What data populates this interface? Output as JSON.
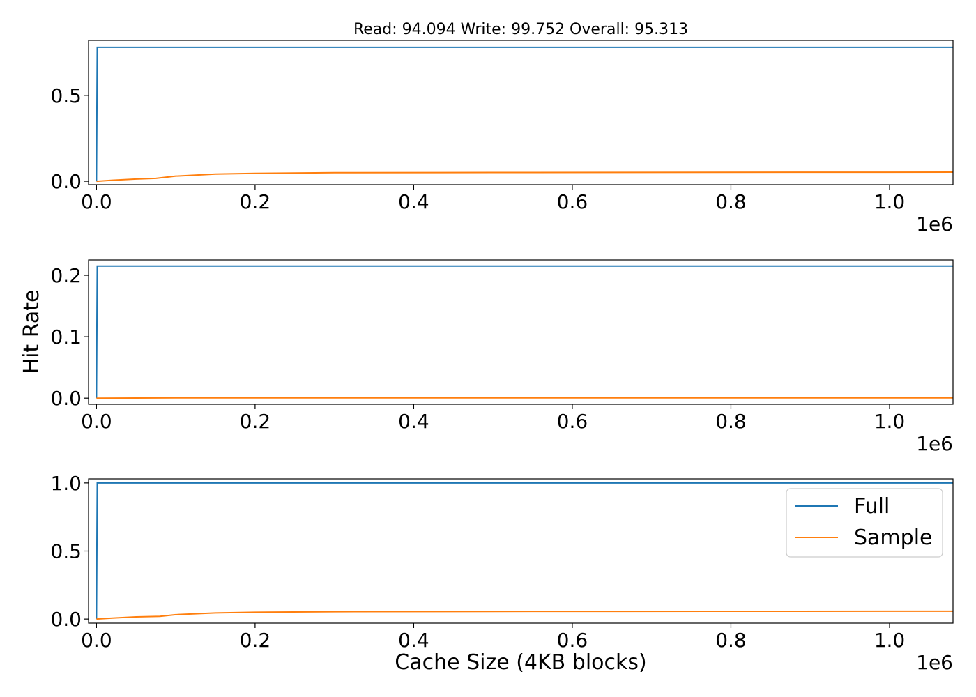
{
  "figure": {
    "title": "Read: 94.094 Write: 99.752 Overall: 95.313",
    "ylabel": "Hit Rate",
    "xlabel": "Cache Size (4KB blocks)",
    "x_offset_text": "1e6"
  },
  "colors": {
    "full": "#1f77b4",
    "sample": "#ff7f0e"
  },
  "legend": {
    "entries": [
      "Full",
      "Sample"
    ],
    "placement": "upper-right-of-bottom-panel"
  },
  "chart_data": [
    {
      "type": "line",
      "title": "Read: 94.094 Write: 99.752 Overall: 95.313",
      "xlim": [
        -10000,
        1080000
      ],
      "ylim": [
        -0.02,
        0.82
      ],
      "x_ticks": [
        0,
        200000,
        400000,
        600000,
        800000,
        1000000
      ],
      "x_tick_labels": [
        "0.0",
        "0.2",
        "0.4",
        "0.6",
        "0.8",
        "1.0"
      ],
      "y_ticks": [
        0,
        0.5
      ],
      "y_tick_labels": [
        "0.0",
        "0.5"
      ],
      "x_offset_text": "1e6",
      "grid": false,
      "series": [
        {
          "name": "Full",
          "x": [
            0,
            1000,
            1080000
          ],
          "y": [
            0,
            0.78,
            0.78
          ]
        },
        {
          "name": "Sample",
          "x": [
            0,
            20000,
            50000,
            75000,
            100000,
            150000,
            200000,
            300000,
            500000,
            1080000
          ],
          "y": [
            0,
            0.006,
            0.013,
            0.017,
            0.03,
            0.042,
            0.046,
            0.05,
            0.051,
            0.053
          ]
        }
      ]
    },
    {
      "type": "line",
      "xlim": [
        -10000,
        1080000
      ],
      "ylim": [
        -0.01,
        0.225
      ],
      "x_ticks": [
        0,
        200000,
        400000,
        600000,
        800000,
        1000000
      ],
      "x_tick_labels": [
        "0.0",
        "0.2",
        "0.4",
        "0.6",
        "0.8",
        "1.0"
      ],
      "y_ticks": [
        0,
        0.1,
        0.2
      ],
      "y_tick_labels": [
        "0.0",
        "0.1",
        "0.2"
      ],
      "x_offset_text": "1e6",
      "ylabel": "Hit Rate",
      "grid": false,
      "series": [
        {
          "name": "Full",
          "x": [
            0,
            1000,
            1080000
          ],
          "y": [
            0,
            0.215,
            0.215
          ]
        },
        {
          "name": "Sample",
          "x": [
            0,
            100000,
            1080000
          ],
          "y": [
            0,
            0.0005,
            0.0005
          ]
        }
      ]
    },
    {
      "type": "line",
      "xlim": [
        -10000,
        1080000
      ],
      "ylim": [
        -0.03,
        1.03
      ],
      "x_ticks": [
        0,
        200000,
        400000,
        600000,
        800000,
        1000000
      ],
      "x_tick_labels": [
        "0.0",
        "0.2",
        "0.4",
        "0.6",
        "0.8",
        "1.0"
      ],
      "y_ticks": [
        0,
        0.5,
        1.0
      ],
      "y_tick_labels": [
        "0.0",
        "0.5",
        "1.0"
      ],
      "x_offset_text": "1e6",
      "xlabel": "Cache Size (4KB blocks)",
      "grid": false,
      "legend": [
        "Full",
        "Sample"
      ],
      "series": [
        {
          "name": "Full",
          "x": [
            0,
            1000,
            1080000
          ],
          "y": [
            0,
            1.0,
            1.0
          ]
        },
        {
          "name": "Sample",
          "x": [
            0,
            20000,
            50000,
            80000,
            100000,
            150000,
            200000,
            300000,
            500000,
            1080000
          ],
          "y": [
            0,
            0.007,
            0.016,
            0.02,
            0.032,
            0.045,
            0.05,
            0.054,
            0.056,
            0.058
          ]
        }
      ]
    }
  ]
}
